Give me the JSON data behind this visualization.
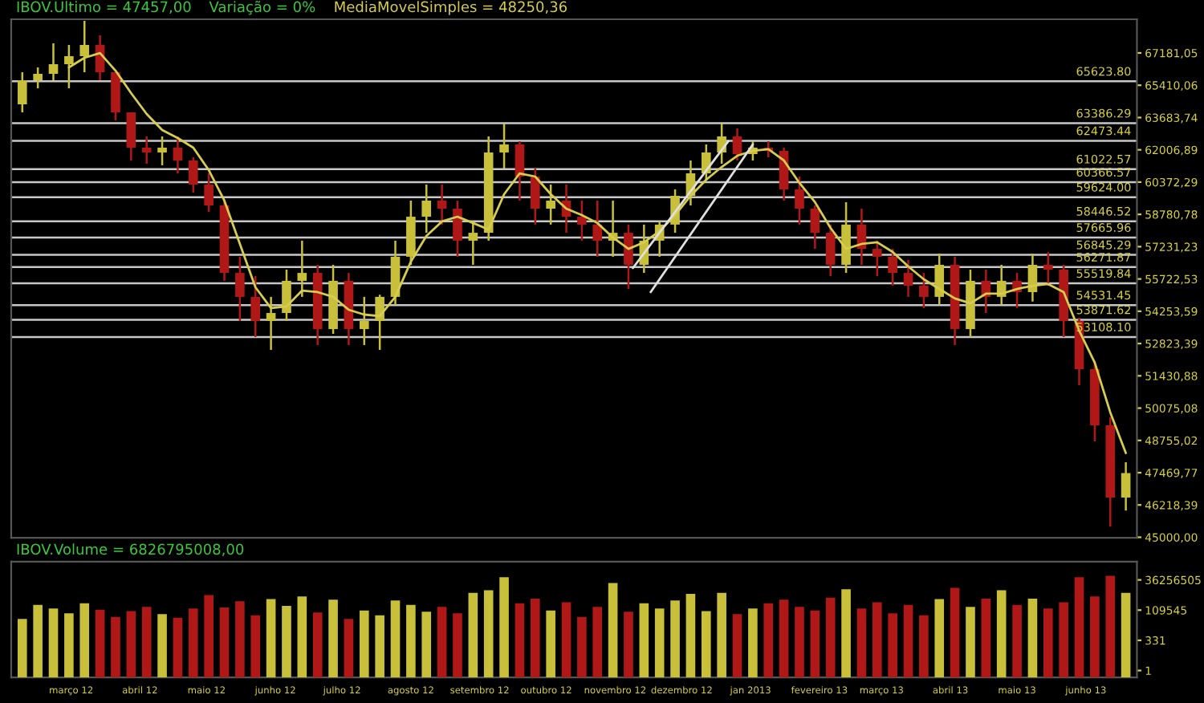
{
  "chart_data": [
    {
      "type": "candlestick",
      "log": "y",
      "tick_labels": "y",
      "annotations": [
        "IBOV.Ultimo = 47457,00",
        "Variação = 0%"
      ],
      "x": [
        "2012-02-08",
        "2012-02-15",
        "2012-02-22",
        "2012-02-29",
        "2012-03-07",
        "2012-03-14",
        "2012-03-21",
        "2012-03-28",
        "2012-04-04",
        "2012-04-11",
        "2012-04-18",
        "2012-04-25",
        "2012-05-02",
        "2012-05-09",
        "2012-05-16",
        "2012-05-23",
        "2012-05-30",
        "2012-06-06",
        "2012-06-13",
        "2012-06-20",
        "2012-06-27",
        "2012-07-04",
        "2012-07-11",
        "2012-07-18",
        "2012-07-25",
        "2012-08-01",
        "2012-08-08",
        "2012-08-15",
        "2012-08-22",
        "2012-08-29",
        "2012-09-05",
        "2012-09-12",
        "2012-09-19",
        "2012-09-26",
        "2012-10-03",
        "2012-10-10",
        "2012-10-17",
        "2012-10-24",
        "2012-10-31",
        "2012-11-07",
        "2012-11-14",
        "2012-11-21",
        "2012-11-28",
        "2012-12-05",
        "2012-12-12",
        "2012-12-19",
        "2012-12-26",
        "2013-01-02",
        "2013-01-09",
        "2013-01-16",
        "2013-01-23",
        "2013-01-30",
        "2013-02-06",
        "2013-02-13",
        "2013-02-20",
        "2013-02-27",
        "2013-03-06",
        "2013-03-13",
        "2013-03-20",
        "2013-03-27",
        "2013-04-03",
        "2013-04-10",
        "2013-04-17",
        "2013-04-24",
        "2013-05-01",
        "2013-05-08",
        "2013-05-15",
        "2013-05-22",
        "2013-05-29",
        "2013-06-05",
        "2013-06-12",
        "2013-06-19"
      ],
      "ohlc": [
        [
          64388,
          66114,
          63958,
          65684
        ],
        [
          65684,
          66380,
          65243,
          66028
        ],
        [
          66028,
          67718,
          65684,
          66560
        ],
        [
          66560,
          67628,
          65243,
          67000
        ],
        [
          67000,
          68988,
          66114,
          67628
        ],
        [
          67628,
          68170,
          65684,
          66114
        ],
        [
          66114,
          66114,
          63538,
          63958
        ],
        [
          63958,
          63958,
          61462,
          62119
        ],
        [
          62119,
          62699,
          61298,
          61871
        ],
        [
          61871,
          62699,
          61216,
          62119
        ],
        [
          62119,
          62699,
          60810,
          61462
        ],
        [
          61462,
          61626,
          59847,
          60250
        ],
        [
          60250,
          60810,
          58904,
          59218
        ],
        [
          59218,
          59455,
          55636,
          56002
        ],
        [
          56002,
          56757,
          53820,
          54903
        ],
        [
          54903,
          55856,
          53108,
          53820
        ],
        [
          53820,
          54903,
          52547,
          54175
        ],
        [
          54175,
          56154,
          53820,
          55636
        ],
        [
          55636,
          57516,
          54903,
          56002
        ],
        [
          56002,
          56379,
          52757,
          53459
        ],
        [
          53459,
          56379,
          53248,
          55636
        ],
        [
          55636,
          56002,
          52757,
          53459
        ],
        [
          53459,
          54903,
          52757,
          53820
        ],
        [
          53820,
          55000,
          52547,
          54903
        ],
        [
          54903,
          57516,
          54542,
          56757
        ],
        [
          56757,
          59455,
          56379,
          58668
        ],
        [
          58668,
          60250,
          57893,
          59455
        ],
        [
          59455,
          60250,
          58286,
          59060
        ],
        [
          59060,
          59455,
          56757,
          57516
        ],
        [
          57516,
          58440,
          56379,
          57893
        ],
        [
          57893,
          62699,
          57516,
          61871
        ],
        [
          61871,
          63368,
          61053,
          62285
        ],
        [
          62285,
          62451,
          59455,
          60650
        ],
        [
          60650,
          61053,
          58286,
          59060
        ],
        [
          59060,
          60250,
          58286,
          59455
        ],
        [
          59455,
          60250,
          57893,
          58668
        ],
        [
          58668,
          59455,
          57516,
          58286
        ],
        [
          58286,
          59455,
          56757,
          57516
        ],
        [
          57516,
          59455,
          56757,
          57893
        ],
        [
          57893,
          58286,
          55264,
          56379
        ],
        [
          56379,
          58286,
          56002,
          57516
        ],
        [
          57516,
          58440,
          56757,
          58286
        ],
        [
          58286,
          60007,
          57893,
          59691
        ],
        [
          59691,
          61462,
          59218,
          60810
        ],
        [
          60810,
          62285,
          60490,
          61871
        ],
        [
          61871,
          63368,
          61298,
          62699
        ],
        [
          62699,
          63114,
          61462,
          61789
        ],
        [
          61789,
          62451,
          61462,
          62119
        ],
        [
          62119,
          62451,
          61626,
          61954
        ],
        [
          61954,
          62119,
          59455,
          60009
        ],
        [
          60009,
          60650,
          58286,
          59060
        ],
        [
          59060,
          59218,
          57128,
          57893
        ],
        [
          57893,
          58286,
          55856,
          56379
        ],
        [
          56379,
          59377,
          56002,
          58286
        ],
        [
          58286,
          59060,
          56379,
          57128
        ],
        [
          57128,
          57516,
          55856,
          56757
        ],
        [
          56757,
          57128,
          55412,
          56002
        ],
        [
          56002,
          56605,
          54903,
          55412
        ],
        [
          55412,
          56002,
          54396,
          54903
        ],
        [
          54903,
          56909,
          54542,
          56379
        ],
        [
          56379,
          56757,
          52757,
          53459
        ],
        [
          53459,
          56152,
          53108,
          55636
        ],
        [
          55636,
          56152,
          54175,
          54903
        ],
        [
          54903,
          56379,
          54542,
          55636
        ],
        [
          55636,
          56002,
          54396,
          55120
        ],
        [
          55120,
          56909,
          54687,
          56379
        ],
        [
          56379,
          56972,
          55412,
          56154
        ],
        [
          56154,
          56379,
          53108,
          53820
        ],
        [
          53820,
          53962,
          51037,
          51717
        ],
        [
          51717,
          52062,
          48716,
          49369
        ],
        [
          49369,
          49699,
          45400,
          46501
        ],
        [
          46501,
          47883,
          46007,
          47457
        ]
      ],
      "colors": [
        "#c8c03a",
        "#c8c03a",
        "#c8c03a",
        "#c8c03a",
        "#c8c03a",
        "#b01818",
        "#b01818",
        "#b01818",
        "#b01818",
        "#c8c03a",
        "#b01818",
        "#b01818",
        "#b01818",
        "#b01818",
        "#b01818",
        "#b01818",
        "#c8c03a",
        "#c8c03a",
        "#c8c03a",
        "#b01818",
        "#c8c03a",
        "#b01818",
        "#c8c03a",
        "#c8c03a",
        "#c8c03a",
        "#c8c03a",
        "#c8c03a",
        "#b01818",
        "#b01818",
        "#c8c03a",
        "#c8c03a",
        "#c8c03a",
        "#b01818",
        "#b01818",
        "#c8c03a",
        "#b01818",
        "#b01818",
        "#b01818",
        "#c8c03a",
        "#b01818",
        "#c8c03a",
        "#c8c03a",
        "#c8c03a",
        "#c8c03a",
        "#c8c03a",
        "#c8c03a",
        "#b01818",
        "#c8c03a",
        "#b01818",
        "#b01818",
        "#b01818",
        "#b01818",
        "#b01818",
        "#c8c03a",
        "#b01818",
        "#b01818",
        "#b01818",
        "#b01818",
        "#b01818",
        "#c8c03a",
        "#b01818",
        "#c8c03a",
        "#b01818",
        "#c8c03a",
        "#b01818",
        "#c8c03a",
        "#b01818",
        "#b01818",
        "#b01818",
        "#b01818",
        "#b01818",
        "#c8c03a"
      ],
      "series": [
        {
          "type": "line",
          "name": "MediaMovelSimples = 48250,36",
          "color": "#d6cc50",
          "values": [
            null,
            null,
            null,
            66382,
            66911,
            67178,
            66203,
            64985,
            63874,
            63031,
            62616,
            62119,
            60972,
            59455,
            57360,
            55338,
            54396,
            54469,
            55192,
            55120,
            54903,
            54321,
            54104,
            54033,
            54903,
            56529,
            57741,
            58440,
            58668,
            58363,
            58051,
            59769,
            60810,
            60650,
            59769,
            59060,
            58746,
            58363,
            57666,
            57128,
            57438,
            57972,
            58746,
            59691,
            60490,
            61135,
            61705,
            61954,
            62036,
            61462,
            60330,
            59377,
            58128,
            57128,
            57360,
            57438,
            56980,
            56304,
            55709,
            55264,
            54831,
            54614,
            55047,
            55047,
            55264,
            55412,
            55488,
            55120,
            53388,
            51993,
            49896,
            48250
          ]
        },
        {
          "type": "line",
          "color": "#e0e0e0",
          "x": [
            "2012-11-09",
            "2012-12-22"
          ],
          "values": [
            56229,
            62451
          ]
        },
        {
          "type": "line",
          "color": "#e0e0e0",
          "x": [
            "2012-11-17",
            "2013-01-02"
          ],
          "values": [
            55120,
            62285
          ]
        }
      ],
      "ref_lines": [
        {
          "axis": "y",
          "value": 65623.8,
          "label": "65623.80",
          "color": "#c8c8c8"
        },
        {
          "axis": "y",
          "value": 63386.29,
          "label": "63386.29",
          "color": "#c8c8c8"
        },
        {
          "axis": "y",
          "value": 62473.44,
          "label": "62473.44",
          "color": "#c8c8c8"
        },
        {
          "axis": "y",
          "value": 61022.57,
          "label": "61022.57",
          "color": "#c8c8c8"
        },
        {
          "axis": "y",
          "value": 60366.57,
          "label": "60366.57",
          "color": "#c8c8c8"
        },
        {
          "axis": "y",
          "value": 59624.0,
          "label": "59624.00",
          "color": "#c8c8c8"
        },
        {
          "axis": "y",
          "value": 58446.52,
          "label": "58446.52",
          "color": "#c8c8c8"
        },
        {
          "axis": "y",
          "value": 57665.96,
          "label": "57665.96",
          "color": "#c8c8c8"
        },
        {
          "axis": "y",
          "value": 56845.29,
          "label": "56845.29",
          "color": "#c8c8c8"
        },
        {
          "axis": "y",
          "value": 56271.87,
          "label": "56271.87",
          "color": "#c8c8c8"
        },
        {
          "axis": "y",
          "value": 55519.84,
          "label": "55519.84",
          "color": "#c8c8c8"
        },
        {
          "axis": "y",
          "value": 54531.45,
          "label": "54531.45",
          "color": "#c8c8c8"
        },
        {
          "axis": "y",
          "value": 53871.62,
          "label": "53871.62",
          "color": "#c8c8c8"
        },
        {
          "axis": "y",
          "value": 53108.1,
          "label": "53108.10",
          "color": "#c8c8c8"
        }
      ],
      "xlim": [
        "2012-02-03",
        "2013-06-24"
      ],
      "ylim": [
        44980,
        69080
      ],
      "yticks": [
        {
          "value": 67181.05,
          "label": "67181,05"
        },
        {
          "value": 65410.06,
          "label": "65410,06"
        },
        {
          "value": 63683.74,
          "label": "63683,74"
        },
        {
          "value": 62006.89,
          "label": "62006,89"
        },
        {
          "value": 60372.29,
          "label": "60372,29"
        },
        {
          "value": 58780.78,
          "label": "58780,78"
        },
        {
          "value": 57231.23,
          "label": "57231,23"
        },
        {
          "value": 55722.53,
          "label": "55722,53"
        },
        {
          "value": 54253.59,
          "label": "54253,59"
        },
        {
          "value": 52823.39,
          "label": "52823,39"
        },
        {
          "value": 51430.88,
          "label": "51430,88"
        },
        {
          "value": 50075.08,
          "label": "50075,08"
        },
        {
          "value": 48755.02,
          "label": "48755,02"
        },
        {
          "value": 47469.77,
          "label": "47469,77"
        },
        {
          "value": 46218.39,
          "label": "46218,39"
        },
        {
          "value": 45000.0,
          "label": "45000,00"
        }
      ]
    },
    {
      "type": "bar",
      "log": "y",
      "annotations": [
        "IBOV.Volume = 6826795008,00"
      ],
      "x": [
        "2012-02-08",
        "2012-02-15",
        "2012-02-22",
        "2012-02-29",
        "2012-03-07",
        "2012-03-14",
        "2012-03-21",
        "2012-03-28",
        "2012-04-04",
        "2012-04-11",
        "2012-04-18",
        "2012-04-25",
        "2012-05-02",
        "2012-05-09",
        "2012-05-16",
        "2012-05-23",
        "2012-05-30",
        "2012-06-06",
        "2012-06-13",
        "2012-06-20",
        "2012-06-27",
        "2012-07-04",
        "2012-07-11",
        "2012-07-18",
        "2012-07-25",
        "2012-08-01",
        "2012-08-08",
        "2012-08-15",
        "2012-08-22",
        "2012-08-29",
        "2012-09-05",
        "2012-09-12",
        "2012-09-19",
        "2012-09-26",
        "2012-10-03",
        "2012-10-10",
        "2012-10-17",
        "2012-10-24",
        "2012-10-31",
        "2012-11-07",
        "2012-11-14",
        "2012-11-21",
        "2012-11-28",
        "2012-12-05",
        "2012-12-12",
        "2012-12-19",
        "2012-12-26",
        "2013-01-02",
        "2013-01-09",
        "2013-01-16",
        "2013-01-23",
        "2013-01-30",
        "2013-02-06",
        "2013-02-13",
        "2013-02-20",
        "2013-02-27",
        "2013-03-06",
        "2013-03-13",
        "2013-03-20",
        "2013-03-27",
        "2013-04-03",
        "2013-04-10",
        "2013-04-17",
        "2013-04-24",
        "2013-05-01",
        "2013-05-08",
        "2013-05-15",
        "2013-05-22",
        "2013-05-29",
        "2013-06-05",
        "2013-06-12",
        "2013-06-19"
      ],
      "values": [
        20000,
        300000,
        150000,
        60000,
        400000,
        120000,
        30000,
        90000,
        200000,
        50000,
        25000,
        150000,
        2000000,
        180000,
        600000,
        40000,
        900000,
        250000,
        1500000,
        70000,
        800000,
        20000,
        100000,
        40000,
        700000,
        300000,
        80000,
        200000,
        60000,
        3000000,
        5000000,
        60000000,
        400000,
        1000000,
        100000,
        500000,
        30000,
        200000,
        20000000,
        80000,
        400000,
        150000,
        700000,
        2500000,
        90000,
        3000000,
        50000,
        150000,
        400000,
        800000,
        200000,
        100000,
        1200000,
        6000000,
        150000,
        500000,
        60000,
        300000,
        40000,
        900000,
        8000000,
        200000,
        1000000,
        5000000,
        300000,
        1000000,
        150000,
        500000,
        60000000,
        1500000,
        80000000,
        3000000
      ],
      "colors": [
        "#c8c03a",
        "#c8c03a",
        "#c8c03a",
        "#c8c03a",
        "#c8c03a",
        "#b01818",
        "#b01818",
        "#b01818",
        "#b01818",
        "#c8c03a",
        "#b01818",
        "#b01818",
        "#b01818",
        "#b01818",
        "#b01818",
        "#b01818",
        "#c8c03a",
        "#c8c03a",
        "#c8c03a",
        "#b01818",
        "#c8c03a",
        "#b01818",
        "#c8c03a",
        "#c8c03a",
        "#c8c03a",
        "#c8c03a",
        "#c8c03a",
        "#b01818",
        "#b01818",
        "#c8c03a",
        "#c8c03a",
        "#c8c03a",
        "#b01818",
        "#b01818",
        "#c8c03a",
        "#b01818",
        "#b01818",
        "#b01818",
        "#c8c03a",
        "#b01818",
        "#c8c03a",
        "#c8c03a",
        "#c8c03a",
        "#c8c03a",
        "#c8c03a",
        "#c8c03a",
        "#b01818",
        "#c8c03a",
        "#b01818",
        "#b01818",
        "#b01818",
        "#b01818",
        "#b01818",
        "#c8c03a",
        "#b01818",
        "#b01818",
        "#b01818",
        "#b01818",
        "#b01818",
        "#c8c03a",
        "#b01818",
        "#c8c03a",
        "#b01818",
        "#c8c03a",
        "#b01818",
        "#c8c03a",
        "#b01818",
        "#b01818",
        "#b01818",
        "#b01818",
        "#b01818",
        "#c8c03a"
      ],
      "xlim": [
        "2012-02-03",
        "2013-06-24"
      ],
      "xticks": [
        {
          "value": "2012-03-01",
          "label": "março 12"
        },
        {
          "value": "2012-04-01",
          "label": "abril 12"
        },
        {
          "value": "2012-05-01",
          "label": "maio 12"
        },
        {
          "value": "2012-06-01",
          "label": "junho 12"
        },
        {
          "value": "2012-07-01",
          "label": "julho 12"
        },
        {
          "value": "2012-08-01",
          "label": "agosto 12"
        },
        {
          "value": "2012-09-01",
          "label": "setembro 12"
        },
        {
          "value": "2012-10-01",
          "label": "outubro 12"
        },
        {
          "value": "2012-11-01",
          "label": "novembro 12"
        },
        {
          "value": "2012-12-01",
          "label": "dezembro 12"
        },
        {
          "value": "2013-01-01",
          "label": "jan 2013"
        },
        {
          "value": "2013-02-01",
          "label": "fevereiro 13"
        },
        {
          "value": "2013-03-01",
          "label": "março 13"
        },
        {
          "value": "2013-04-01",
          "label": "abril 13"
        },
        {
          "value": "2013-05-01",
          "label": "maio 13"
        },
        {
          "value": "2013-06-01",
          "label": "junho 13"
        }
      ],
      "ylim": [
        0.27,
        1200000000
      ],
      "yticks": [
        1,
        331,
        109545,
        36256505
      ]
    }
  ]
}
